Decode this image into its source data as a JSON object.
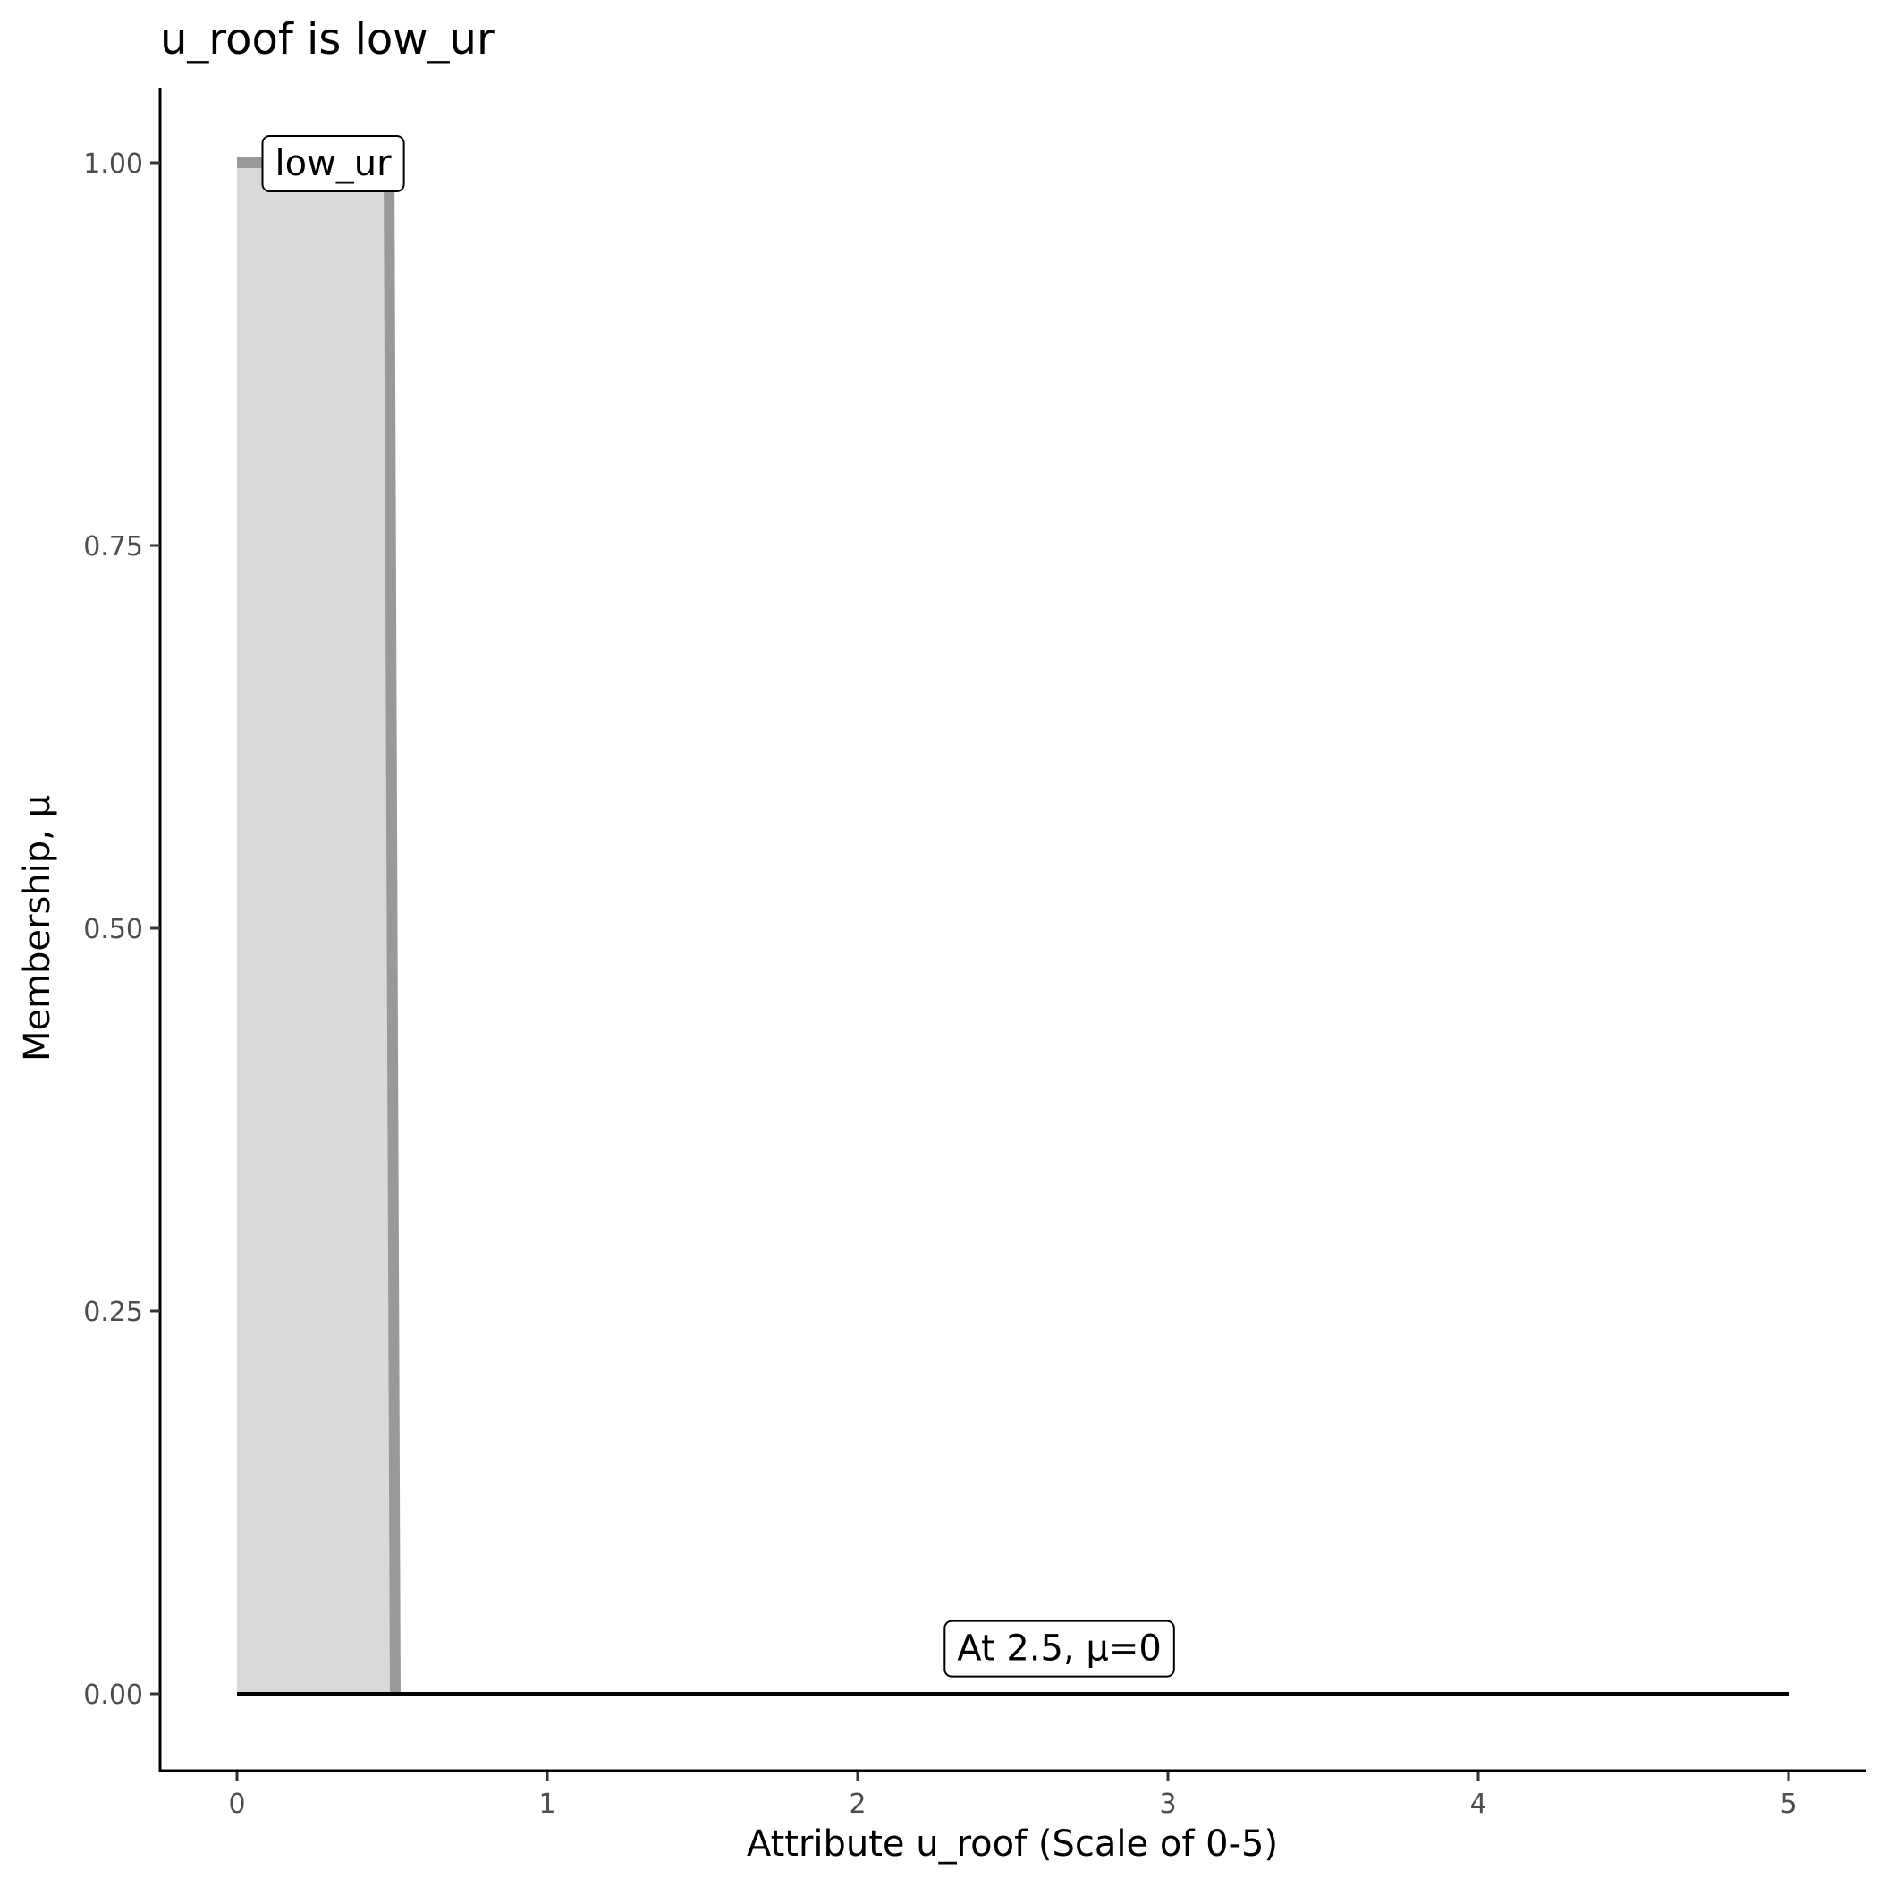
{
  "chart_data": {
    "type": "area",
    "title": "u_roof is low_ur",
    "xlabel": "Attribute u_roof (Scale of 0-5)",
    "ylabel": "Membership, μ",
    "xlim": [
      -0.25,
      5.25
    ],
    "ylim": [
      -0.05,
      1.05
    ],
    "xticks": [
      "0",
      "1",
      "2",
      "3",
      "4",
      "5"
    ],
    "yticks": [
      "0.00",
      "0.25",
      "0.50",
      "0.75",
      "1.00"
    ],
    "grid": false,
    "series": [
      {
        "x": [
          0,
          0.49,
          0.51
        ],
        "y": [
          1,
          1,
          0
        ],
        "color": "#999999",
        "fill": "#d9d9d9"
      },
      {
        "x": [
          0,
          5
        ],
        "y": [
          0,
          0
        ],
        "color": "#000000"
      }
    ],
    "annotations": [
      {
        "text": "low_ur",
        "x": 0.31,
        "y": 1.0
      },
      {
        "text": "At 2.5, μ=0",
        "x": 2.65,
        "y": 0.03
      }
    ]
  }
}
